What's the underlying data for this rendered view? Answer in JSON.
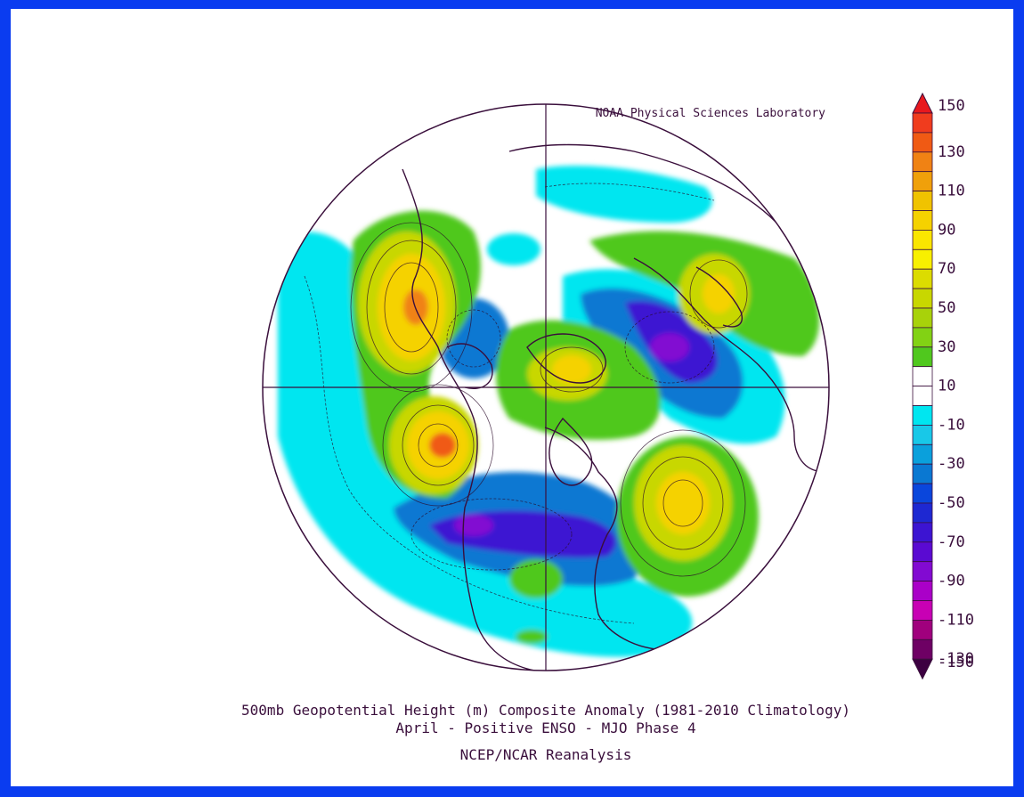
{
  "credit": "NOAA Physical Sciences Laboratory",
  "title": {
    "line1": "500mb Geopotential Height (m) Composite Anomaly (1981-2010 Climatology)",
    "line2": "April - Positive ENSO - MJO Phase 4",
    "line3": "NCEP/NCAR Reanalysis"
  },
  "colorbar": {
    "levels": [
      {
        "label": "150",
        "color": "#e8181e"
      },
      {
        "label": "",
        "color": "#f03c1e"
      },
      {
        "label": "130",
        "color": "#f05a14"
      },
      {
        "label": "",
        "color": "#f08214"
      },
      {
        "label": "110",
        "color": "#f0a00a"
      },
      {
        "label": "",
        "color": "#f0c300"
      },
      {
        "label": "90",
        "color": "#f5d200"
      },
      {
        "label": "",
        "color": "#fae600"
      },
      {
        "label": "70",
        "color": "#f8f000"
      },
      {
        "label": "",
        "color": "#dcdc00"
      },
      {
        "label": "50",
        "color": "#c8d700"
      },
      {
        "label": "",
        "color": "#a8d20a"
      },
      {
        "label": "30",
        "color": "#82d214"
      },
      {
        "label": "",
        "color": "#50c81e"
      },
      {
        "label": "10",
        "color": "#ffffff"
      },
      {
        "label": "",
        "color": "#ffffff"
      },
      {
        "label": "-10",
        "color": "#00e6f0"
      },
      {
        "label": "",
        "color": "#18c8e8"
      },
      {
        "label": "-30",
        "color": "#0aa0dc"
      },
      {
        "label": "",
        "color": "#0a78d2"
      },
      {
        "label": "-50",
        "color": "#0a46dc"
      },
      {
        "label": "",
        "color": "#1e28d2"
      },
      {
        "label": "-70",
        "color": "#3c14d2"
      },
      {
        "label": "",
        "color": "#5a0ad2"
      },
      {
        "label": "-90",
        "color": "#820ad2"
      },
      {
        "label": "",
        "color": "#aa00c8"
      },
      {
        "label": "-110",
        "color": "#c800b4"
      },
      {
        "label": "",
        "color": "#a0007d"
      },
      {
        "label": "-130",
        "color": "#6e0064"
      },
      {
        "label": "-150",
        "color": "#3c0041"
      }
    ],
    "top_arrow_color": "#e8181e",
    "bottom_arrow_color": "#3c0041"
  },
  "colors": {
    "frame_border": "#0a3cf0",
    "map_lines": "#3a0f3c"
  }
}
